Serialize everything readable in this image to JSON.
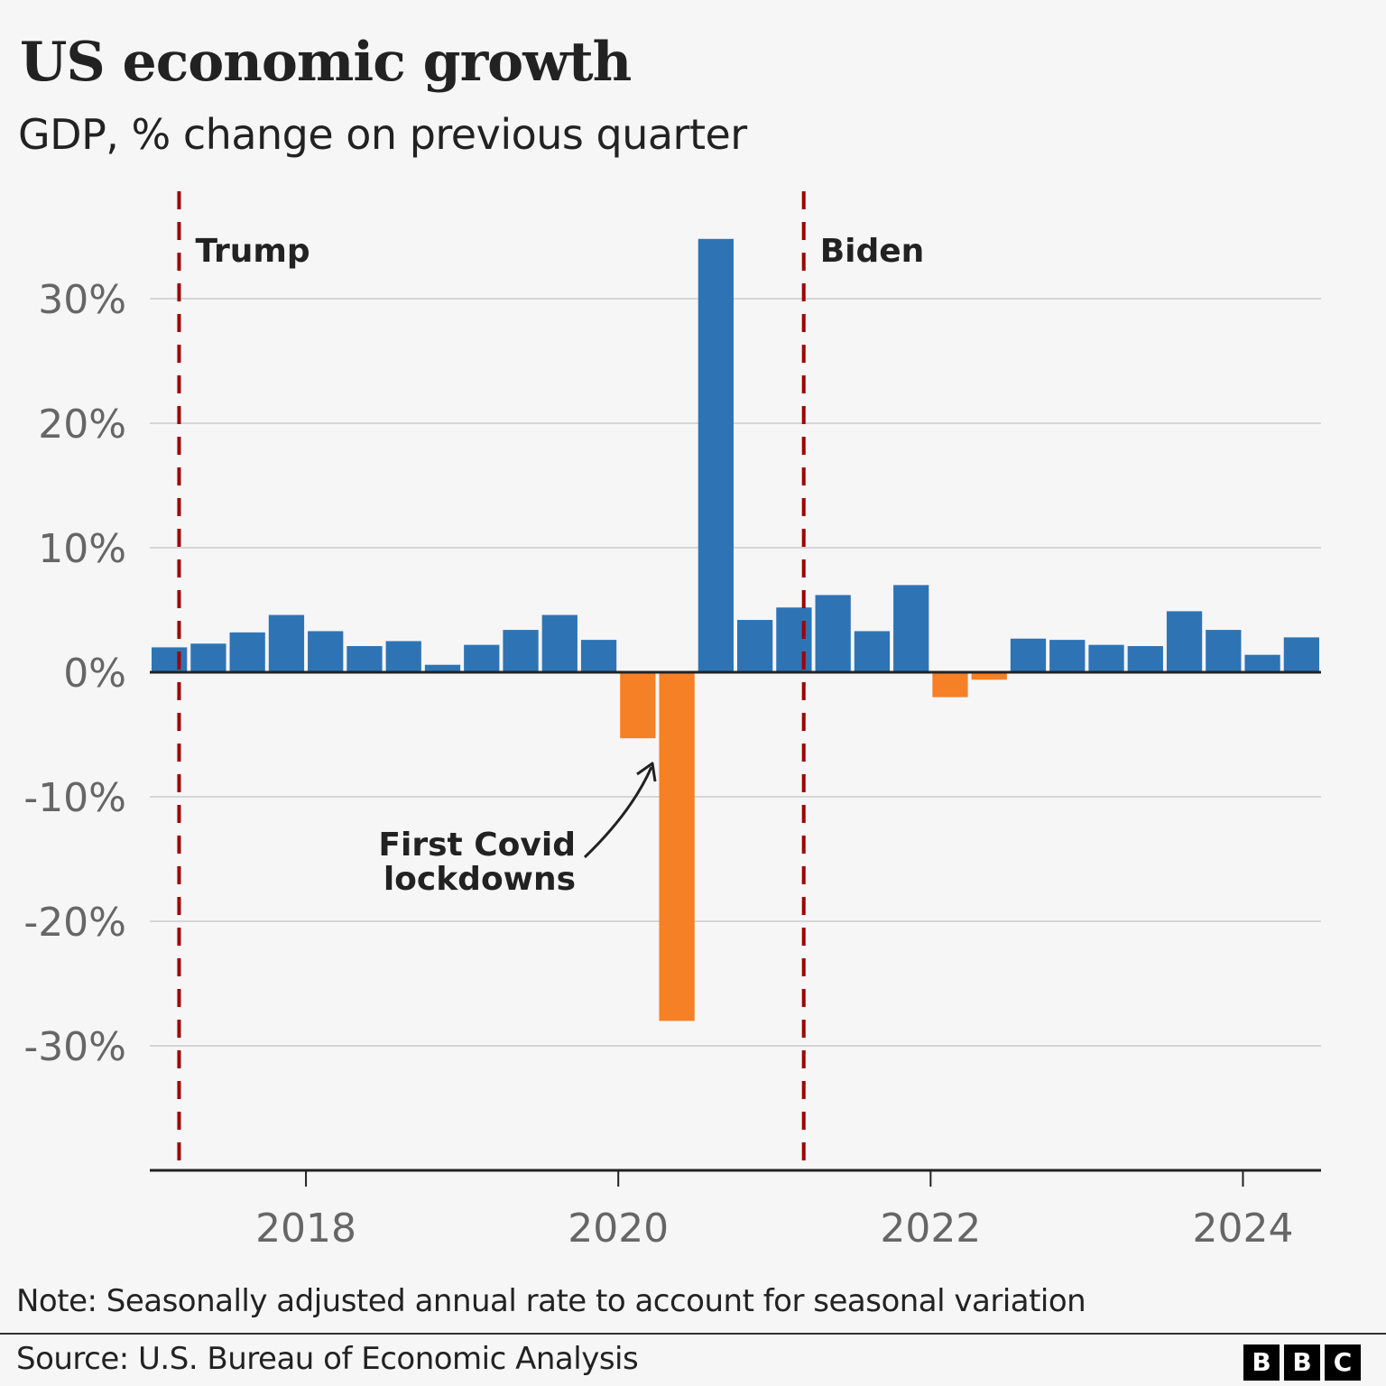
{
  "header": {
    "title": "US economic growth",
    "subtitle": "GDP, % change on previous quarter"
  },
  "footer": {
    "note": "Note: Seasonally adjusted annual rate to account for seasonal variation",
    "source": "Source: U.S. Bureau of Economic Analysis",
    "logo_letters": [
      "B",
      "B",
      "C"
    ]
  },
  "colors": {
    "positive": "#2e74b5",
    "negative": "#f58025",
    "marker_line": "#a00000",
    "grid": "#d6d6d6",
    "axis": "#222222",
    "tick_label": "#666666"
  },
  "chart_data": {
    "type": "bar",
    "title": "US economic growth",
    "subtitle": "GDP, % change on previous quarter",
    "xlabel": "",
    "ylabel": "",
    "ylim": [
      -40,
      35
    ],
    "yticks": [
      30,
      20,
      10,
      0,
      -10,
      -20,
      -30
    ],
    "ytick_labels": [
      "30%",
      "20%",
      "10%",
      "0%",
      "-10%",
      "-20%",
      "-30%"
    ],
    "xticks": [
      2018,
      2020,
      2022,
      2024
    ],
    "xtick_labels": [
      "2018",
      "2020",
      "2022",
      "2024"
    ],
    "grid": true,
    "categories": [
      "2017 Q1",
      "2017 Q2",
      "2017 Q3",
      "2017 Q4",
      "2018 Q1",
      "2018 Q2",
      "2018 Q3",
      "2018 Q4",
      "2019 Q1",
      "2019 Q2",
      "2019 Q3",
      "2019 Q4",
      "2020 Q1",
      "2020 Q2",
      "2020 Q3",
      "2020 Q4",
      "2021 Q1",
      "2021 Q2",
      "2021 Q3",
      "2021 Q4",
      "2022 Q1",
      "2022 Q2",
      "2022 Q3",
      "2022 Q4",
      "2023 Q1",
      "2023 Q2",
      "2023 Q3",
      "2023 Q4",
      "2024 Q1",
      "2024 Q2"
    ],
    "values": [
      2.0,
      2.3,
      3.2,
      4.6,
      3.3,
      2.1,
      2.5,
      0.6,
      2.2,
      3.4,
      4.6,
      2.6,
      -5.3,
      -28.0,
      34.8,
      4.2,
      5.2,
      6.2,
      3.3,
      7.0,
      -2.0,
      -0.6,
      2.7,
      2.6,
      2.2,
      2.1,
      4.9,
      3.4,
      1.4,
      2.8
    ],
    "markers": [
      {
        "label": "Trump",
        "at": "2017 Q1"
      },
      {
        "label": "Biden",
        "at": "2021 Q1"
      }
    ],
    "annotations": [
      {
        "text_lines": [
          "First Covid",
          "lockdowns"
        ],
        "points_to": "2020 Q1"
      }
    ]
  }
}
